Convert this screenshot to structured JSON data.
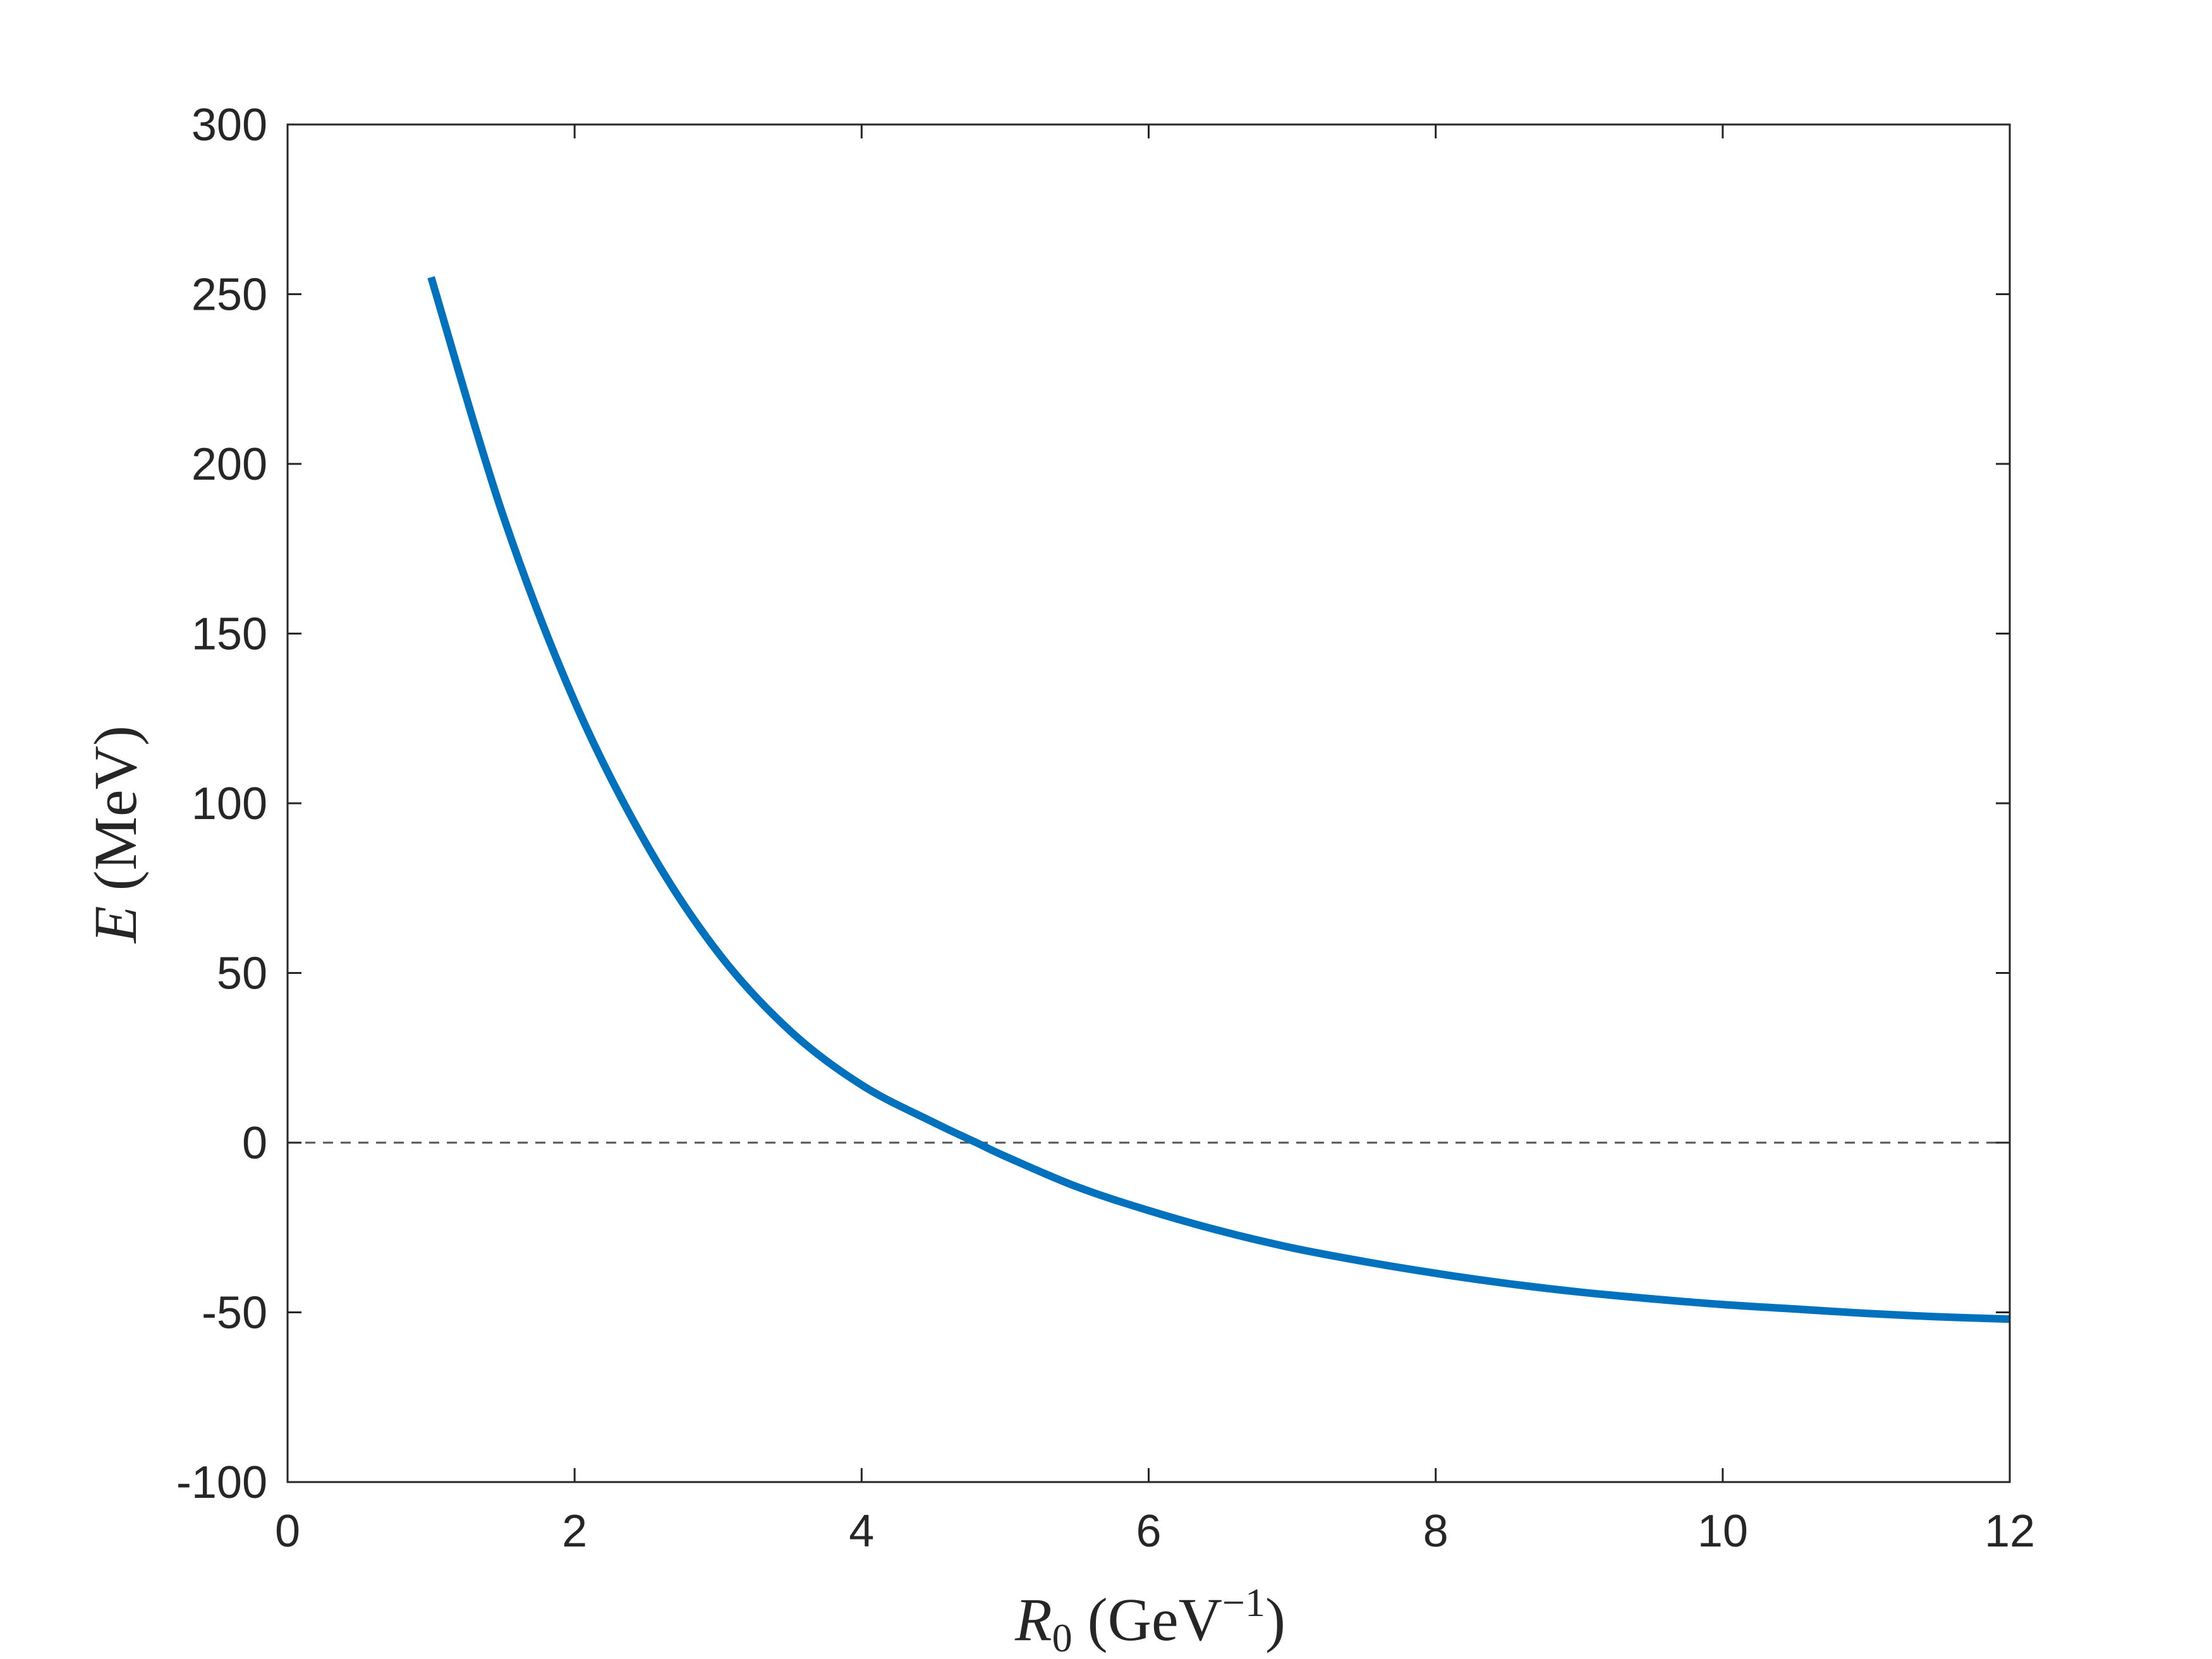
{
  "chart_data": {
    "type": "line",
    "xlabel": {
      "var": "R",
      "sub": "0",
      "unit_open": " (GeV",
      "unit_sup": "−1",
      "unit_close": ")"
    },
    "ylabel": {
      "var": "E",
      "unit": " (MeV)"
    },
    "xlim": [
      0,
      12
    ],
    "ylim": [
      -100,
      300
    ],
    "xticks": [
      0,
      2,
      4,
      6,
      8,
      10,
      12
    ],
    "yticks": [
      -100,
      -50,
      0,
      50,
      100,
      150,
      200,
      250,
      300
    ],
    "xtick_labels": [
      "0",
      "2",
      "4",
      "6",
      "8",
      "10",
      "12"
    ],
    "ytick_labels": [
      "-100",
      "-50",
      "0",
      "50",
      "100",
      "150",
      "200",
      "250",
      "300"
    ],
    "grid": false,
    "colors": {
      "series": "#0072BD",
      "zero_line": "#555555",
      "axes": "#262626"
    },
    "reference_lines": [
      {
        "y": 0,
        "style": "dashed"
      }
    ],
    "series": [
      {
        "x": [
          1.0,
          1.5,
          2.0,
          2.5,
          3.0,
          3.5,
          4.0,
          4.5,
          4.8,
          5.0,
          5.5,
          6.0,
          6.5,
          7.0,
          7.5,
          8.0,
          8.5,
          9.0,
          9.5,
          10.0,
          10.5,
          11.0,
          11.5,
          12.0
        ],
        "y": [
          255,
          185,
          130,
          88,
          56,
          33,
          17,
          6,
          0,
          -4,
          -13,
          -20,
          -26,
          -31,
          -35,
          -38.5,
          -41.5,
          -44,
          -46,
          -47.7,
          -49,
          -50.3,
          -51.3,
          -52
        ]
      }
    ]
  }
}
